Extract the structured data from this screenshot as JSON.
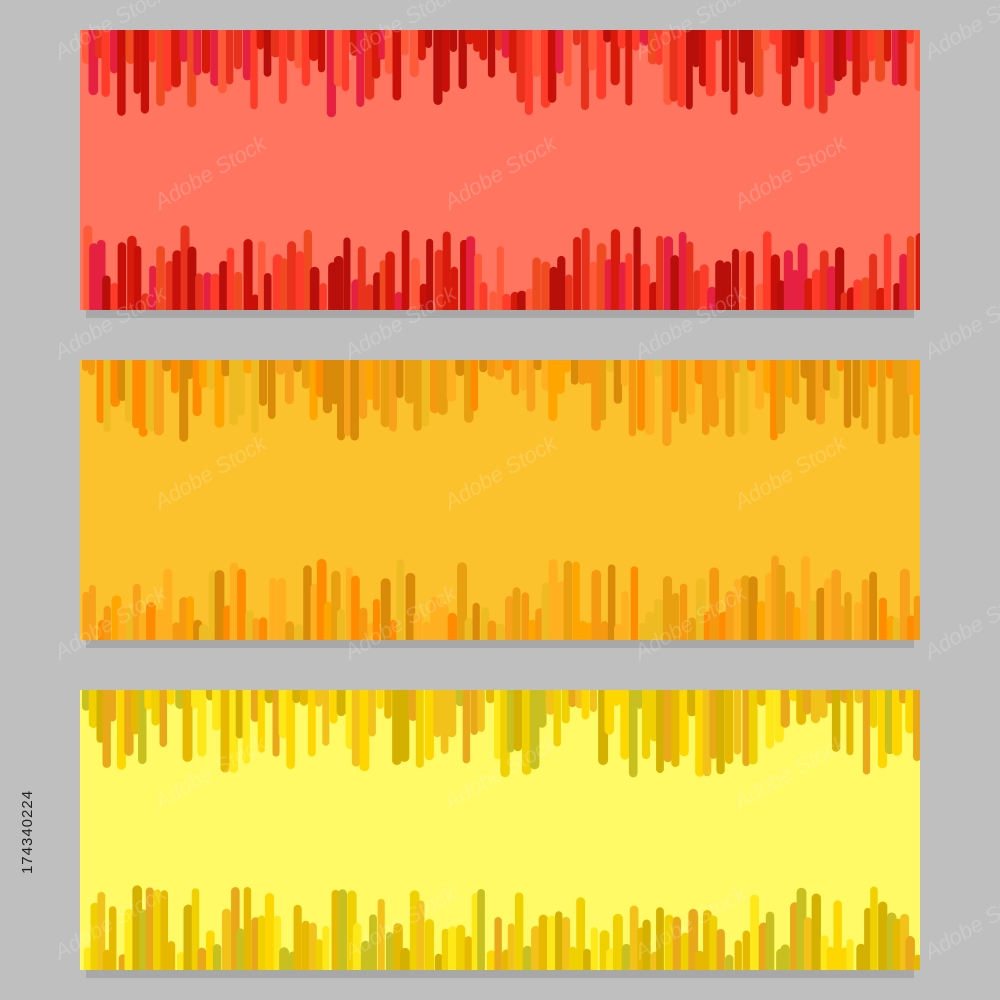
{
  "stock_id": "174340224",
  "watermark": "Adobe Stock"
}
